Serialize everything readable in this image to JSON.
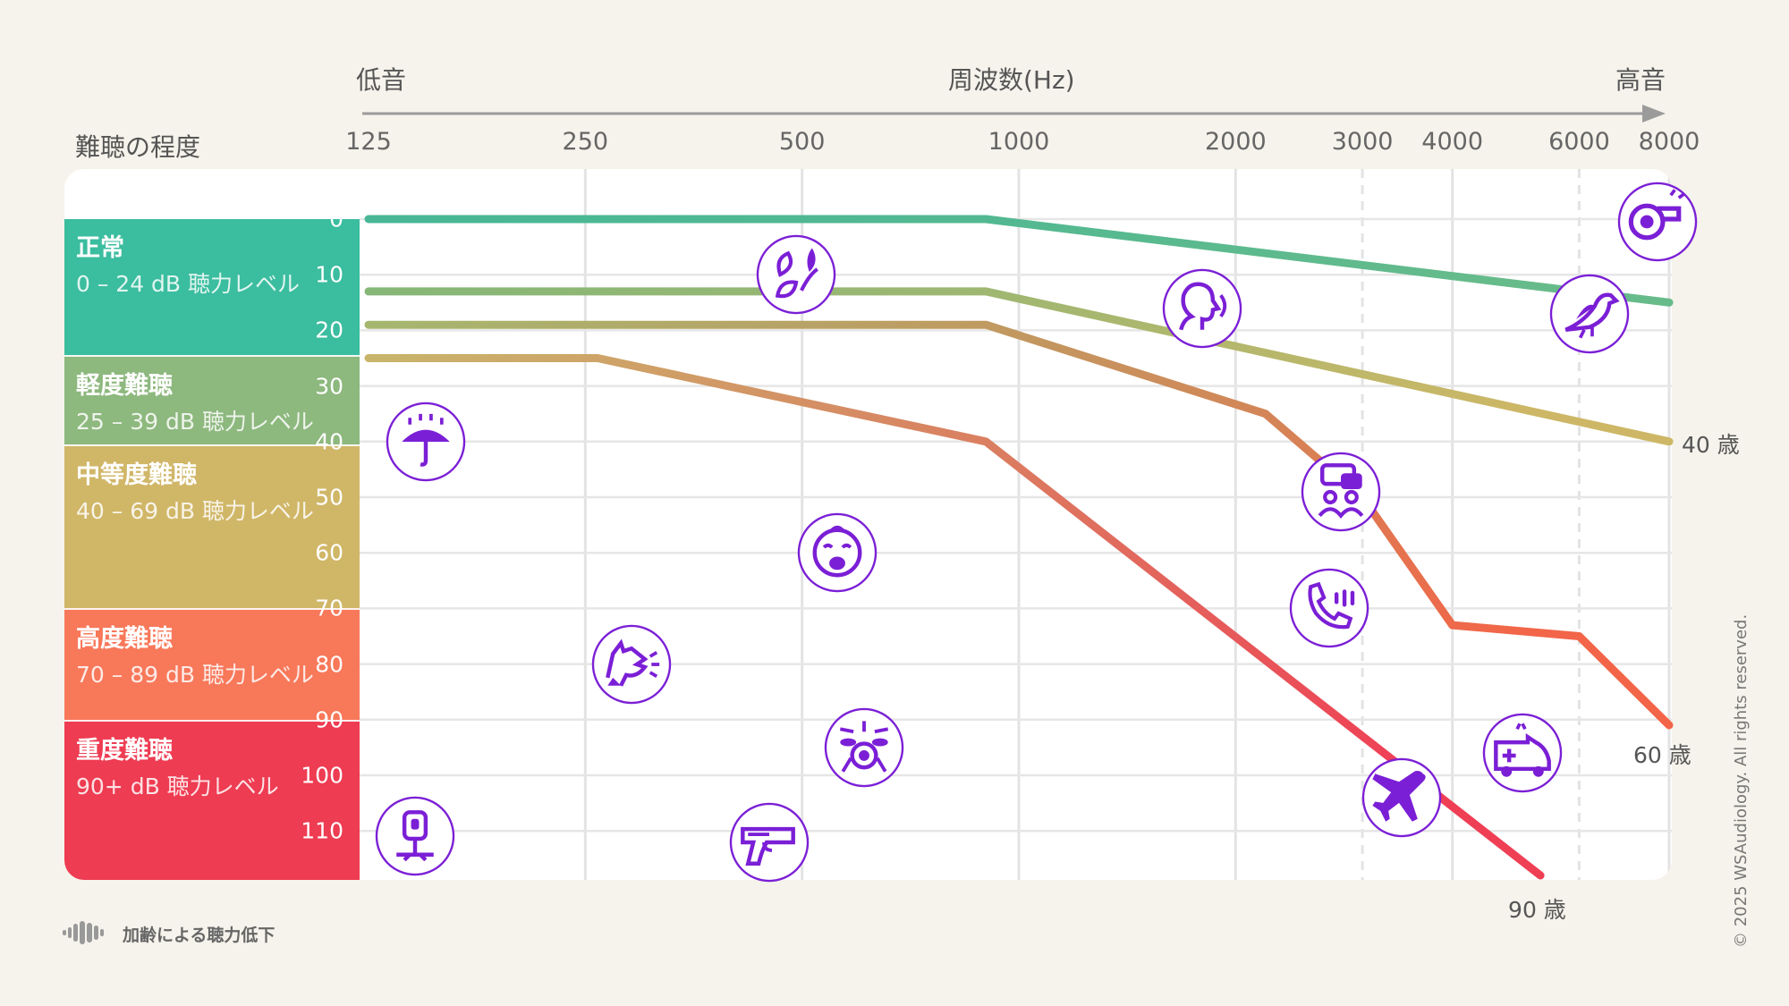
{
  "header": {
    "low_label": "低音",
    "axis_title": "周波数(Hz)",
    "high_label": "高音",
    "severity_title": "難聴の程度"
  },
  "severity": [
    {
      "name": "正常",
      "range": "0 – 24 dB 聴力レベル",
      "from": 0,
      "to": 24.5,
      "color": "#3bbd9f"
    },
    {
      "name": "軽度難聴",
      "range": "25 – 39 dB 聴力レベル",
      "from": 24.5,
      "to": 40.5,
      "color": "#8db87e"
    },
    {
      "name": "中等度難聴",
      "range": "40 – 69 dB 聴力レベル",
      "from": 40.5,
      "to": 70,
      "color": "#d0b667"
    },
    {
      "name": "高度難聴",
      "range": "70 – 89 dB 聴力レベル",
      "from": 70,
      "to": 90,
      "color": "#f8785a"
    },
    {
      "name": "重度難聴",
      "range": "90+ dB 聴力レベル",
      "from": 90,
      "to": 127,
      "color": "#ee3c52"
    }
  ],
  "legend": {
    "label": "加齢による聴力低下"
  },
  "copyright": "© 2025 WSAudiology. All rights reserved.",
  "icons": [
    {
      "name": "whistle-icon",
      "freq": 7700,
      "db": 0.5
    },
    {
      "name": "bird-icon",
      "freq": 6200,
      "db": 17
    },
    {
      "name": "leaves-icon",
      "freq": 490,
      "db": 10
    },
    {
      "name": "talking-person-icon",
      "freq": 1800,
      "db": 16
    },
    {
      "name": "rain-umbrella-icon",
      "freq": 150,
      "db": 40
    },
    {
      "name": "conversation-icon",
      "freq": 2800,
      "db": 49
    },
    {
      "name": "crying-baby-icon",
      "freq": 560,
      "db": 60
    },
    {
      "name": "phone-ringing-icon",
      "freq": 2700,
      "db": 70
    },
    {
      "name": "barking-dog-icon",
      "freq": 290,
      "db": 80
    },
    {
      "name": "drum-kit-icon",
      "freq": 610,
      "db": 95
    },
    {
      "name": "ambulance-icon",
      "freq": 5000,
      "db": 96
    },
    {
      "name": "airplane-icon",
      "freq": 3400,
      "db": 104
    },
    {
      "name": "jackhammer-icon",
      "freq": 145,
      "db": 111
    },
    {
      "name": "gun-icon",
      "freq": 450,
      "db": 112
    }
  ],
  "chart_data": {
    "type": "line",
    "title": "",
    "xlabel": "周波数(Hz)",
    "ylabel": "難聴の程度",
    "x_scale": "log",
    "x_ticks": [
      125,
      250,
      500,
      1000,
      2000,
      3000,
      4000,
      6000,
      8000
    ],
    "y_ticks": [
      0,
      10,
      20,
      30,
      40,
      50,
      60,
      70,
      80,
      90,
      100,
      110
    ],
    "ylim": [
      0,
      120
    ],
    "y_inverted": true,
    "grid": true,
    "legend": "bottom-left",
    "series": [
      {
        "name": "",
        "color_from": "#47b795",
        "color_to": "#67bb8a",
        "points": [
          [
            125,
            0
          ],
          [
            900,
            0
          ],
          [
            8000,
            15
          ]
        ]
      },
      {
        "name": "",
        "color_from": "#85b777",
        "color_to": "#cdb766",
        "points": [
          [
            125,
            13
          ],
          [
            900,
            13
          ],
          [
            8000,
            40
          ]
        ],
        "label": "40 歳"
      },
      {
        "name": "",
        "color_from": "#a5b76f",
        "color_to": "#f26548",
        "points": [
          [
            125,
            19
          ],
          [
            900,
            19
          ],
          [
            2200,
            35
          ],
          [
            3000,
            50
          ],
          [
            4000,
            73
          ],
          [
            6000,
            75
          ],
          [
            8000,
            91
          ]
        ],
        "label": "60 歳"
      },
      {
        "name": "",
        "color_from": "#c8b56b",
        "color_to": "#ef3f55",
        "points": [
          [
            125,
            25
          ],
          [
            260,
            25
          ],
          [
            900,
            40
          ],
          [
            5300,
            118
          ]
        ],
        "label": "90 歳"
      }
    ]
  }
}
